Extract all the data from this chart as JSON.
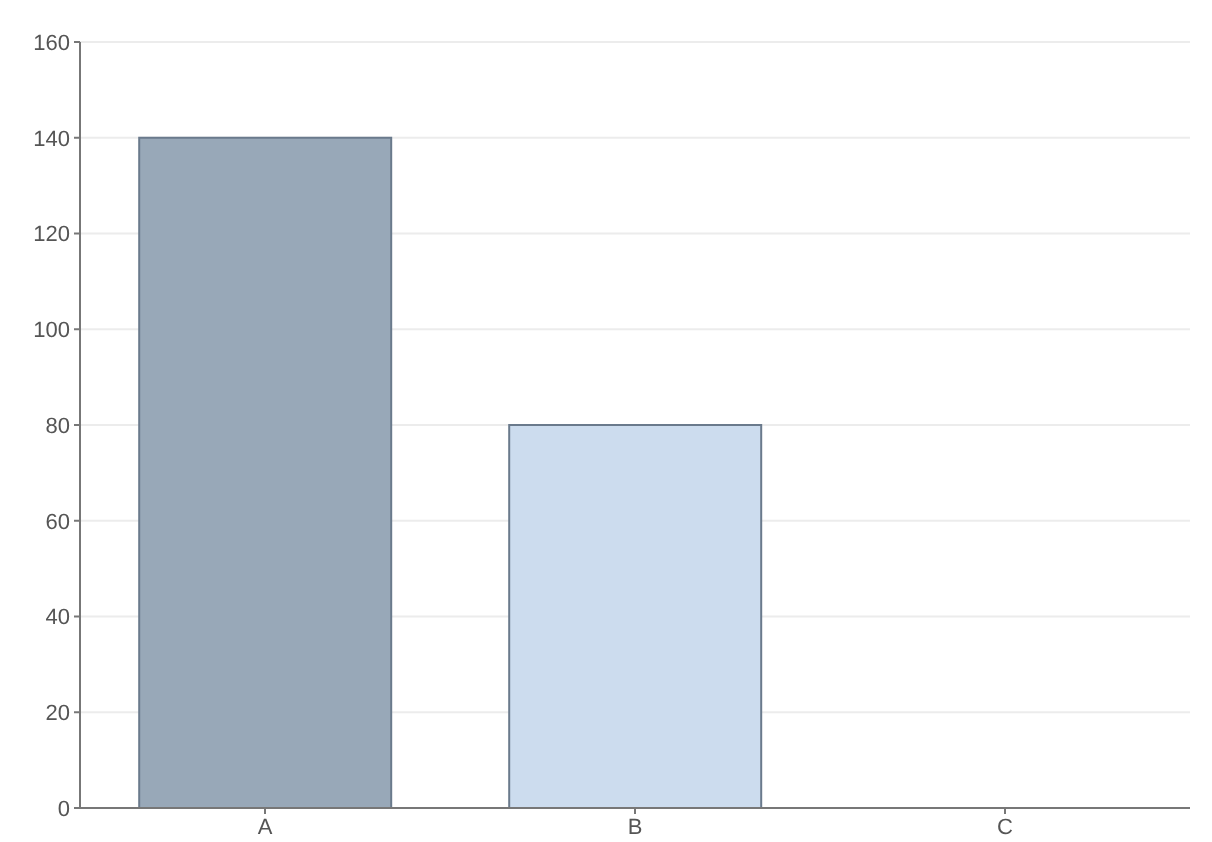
{
  "chart_data": {
    "type": "bar",
    "categories": [
      "A",
      "B",
      "C"
    ],
    "values": [
      140,
      80,
      0
    ],
    "colors": [
      "#98a8b8",
      "#ccdcee",
      "#b0b8b8"
    ],
    "ylim": [
      0,
      160
    ],
    "yticks": [
      0,
      20,
      40,
      60,
      80,
      100,
      120,
      140,
      160
    ],
    "grid": "y"
  }
}
